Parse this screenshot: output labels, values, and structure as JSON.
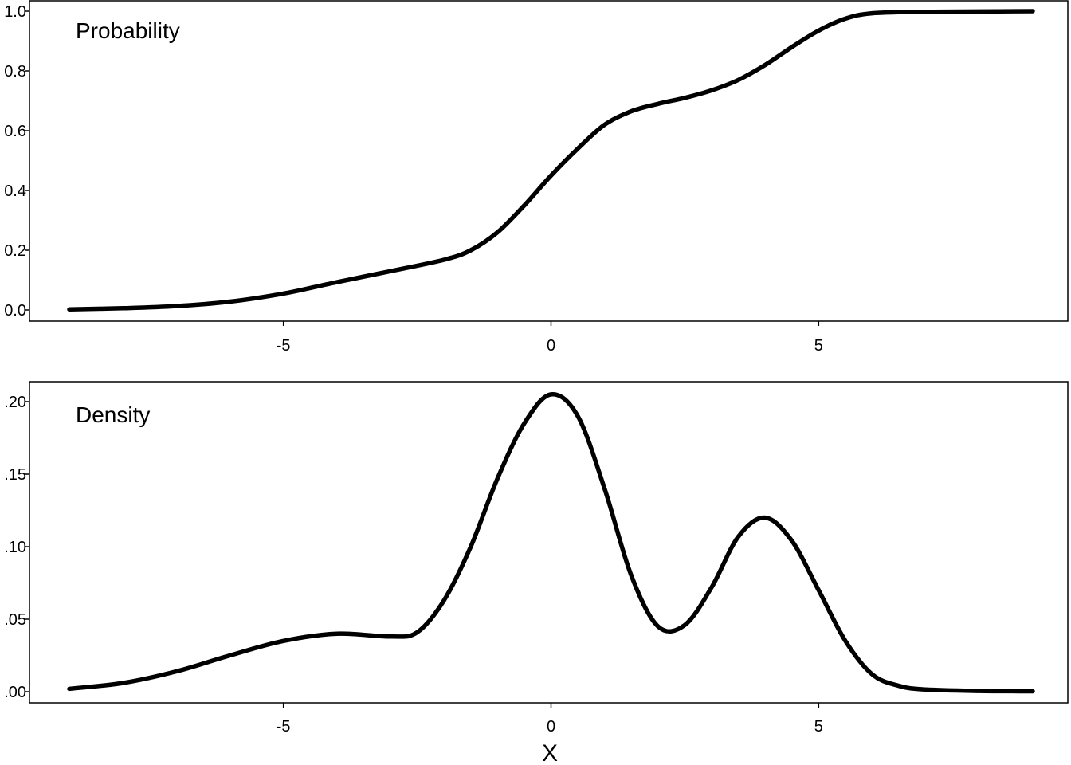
{
  "chart_data": [
    {
      "type": "line",
      "label": "Probability",
      "xlim": [
        -9,
        9
      ],
      "ylim": [
        0,
        1
      ],
      "x_ticks": [
        -5,
        0,
        5
      ],
      "x_tick_labels": [
        "-5",
        "0",
        "5"
      ],
      "y_ticks": [
        0,
        0.2,
        0.4,
        0.6,
        0.8,
        1.0
      ],
      "y_tick_labels": [
        "0.0",
        "0.2",
        "0.4",
        "0.6",
        "0.8",
        "1.0"
      ],
      "series": [
        {
          "x": [
            -9,
            -8,
            -7,
            -6,
            -5,
            -4,
            -3,
            -2,
            -1.5,
            -1,
            -0.5,
            0,
            0.5,
            1,
            1.5,
            2,
            2.5,
            3,
            3.5,
            4,
            4.5,
            5,
            5.5,
            6,
            7,
            8,
            9
          ],
          "y": [
            0.002,
            0.006,
            0.013,
            0.028,
            0.055,
            0.093,
            0.13,
            0.168,
            0.2,
            0.26,
            0.35,
            0.45,
            0.54,
            0.62,
            0.665,
            0.69,
            0.71,
            0.735,
            0.77,
            0.82,
            0.88,
            0.935,
            0.975,
            0.993,
            0.998,
            0.999,
            1.0
          ]
        }
      ]
    },
    {
      "type": "line",
      "label": "Density",
      "xlabel": "X",
      "xlim": [
        -9,
        9
      ],
      "ylim": [
        0,
        0.2
      ],
      "x_ticks": [
        -5,
        0,
        5
      ],
      "x_tick_labels": [
        "-5",
        "0",
        "5"
      ],
      "y_ticks": [
        0,
        0.05,
        0.1,
        0.15,
        0.2
      ],
      "y_tick_labels": [
        ".00",
        ".05",
        ".10",
        ".15",
        ".20"
      ],
      "series": [
        {
          "x": [
            -9,
            -8,
            -7,
            -6,
            -5,
            -4,
            -3,
            -2.5,
            -2,
            -1.5,
            -1,
            -0.5,
            0,
            0.5,
            1,
            1.5,
            2,
            2.5,
            3,
            3.5,
            4,
            4.5,
            5,
            5.5,
            6,
            6.5,
            7,
            8,
            9
          ],
          "y": [
            0.002,
            0.006,
            0.014,
            0.025,
            0.035,
            0.04,
            0.038,
            0.041,
            0.063,
            0.1,
            0.147,
            0.185,
            0.205,
            0.19,
            0.14,
            0.08,
            0.045,
            0.046,
            0.072,
            0.107,
            0.12,
            0.104,
            0.07,
            0.035,
            0.012,
            0.004,
            0.0015,
            0.0005,
            0.0003
          ]
        }
      ]
    }
  ]
}
